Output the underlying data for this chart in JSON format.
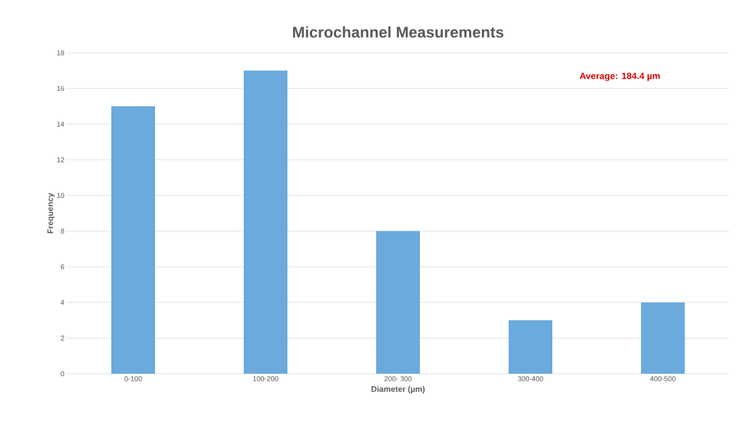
{
  "chart_data": {
    "type": "bar",
    "title": "Microchannel Measurements",
    "xlabel": "Diameter (µm)",
    "ylabel": "Frequency",
    "categories": [
      "0-100",
      "100-200",
      "200- 300",
      "300-400",
      "400-500"
    ],
    "values": [
      15,
      17,
      8,
      3,
      4
    ],
    "color": "#6aaadc",
    "ylim": [
      0,
      18
    ],
    "yticks": [
      0,
      2,
      4,
      6,
      8,
      10,
      12,
      14,
      16,
      18
    ],
    "grid": "y",
    "annotations": [
      "Average: 184.4 µm"
    ]
  }
}
